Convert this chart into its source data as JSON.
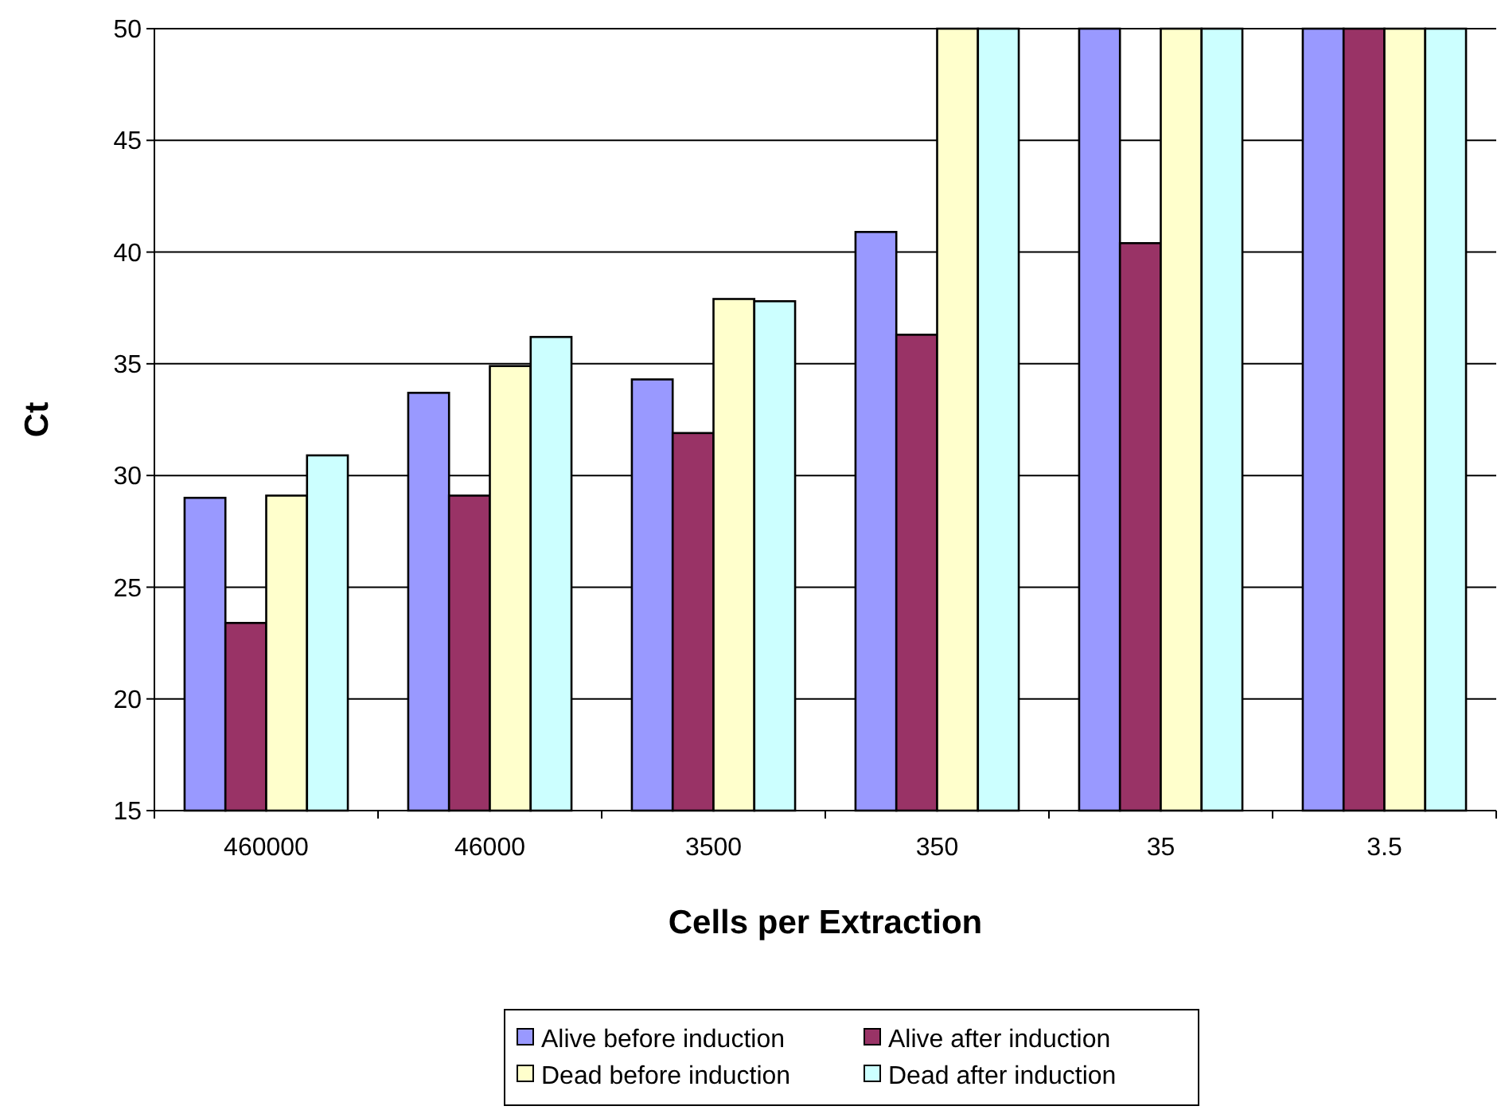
{
  "chart_data": {
    "type": "bar",
    "xlabel": "Cells per Extraction",
    "ylabel": "Ct",
    "categories": [
      "460000",
      "46000",
      "3500",
      "350",
      "35",
      "3.5"
    ],
    "series": [
      {
        "name": "Alive before induction",
        "color": "#9999ff",
        "values": [
          29.0,
          33.7,
          34.3,
          40.9,
          50,
          50
        ]
      },
      {
        "name": "Alive after induction",
        "color": "#993366",
        "values": [
          23.4,
          29.1,
          31.9,
          36.3,
          40.4,
          50
        ]
      },
      {
        "name": "Dead before induction",
        "color": "#ffffcc",
        "values": [
          29.1,
          34.9,
          37.9,
          50,
          50,
          50
        ]
      },
      {
        "name": "Dead after induction",
        "color": "#ccffff",
        "values": [
          30.9,
          36.2,
          37.8,
          50,
          50,
          50
        ]
      }
    ],
    "ylim": [
      15,
      50
    ],
    "yticks": [
      15,
      20,
      25,
      30,
      35,
      40,
      45,
      50
    ],
    "grid": "y",
    "legend": "bottom"
  }
}
